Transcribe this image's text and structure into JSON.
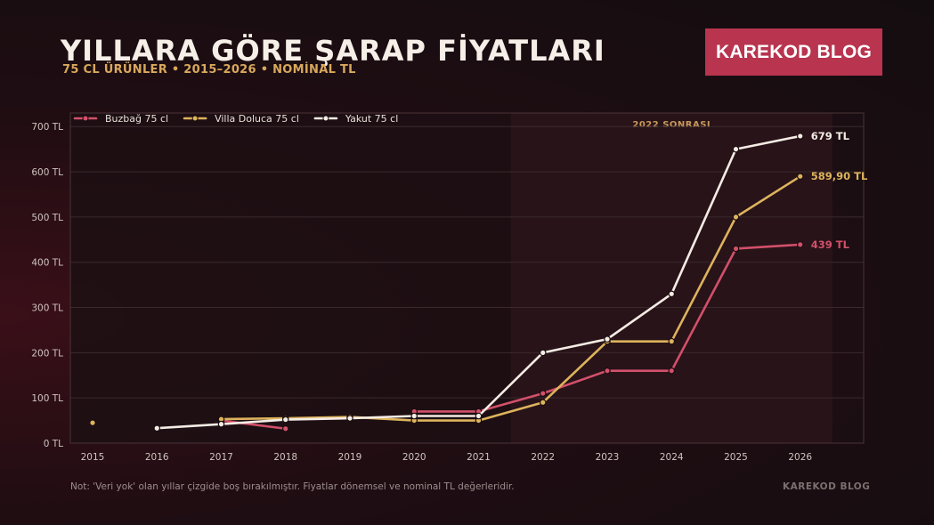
{
  "header": {
    "title": "YILLARA GÖRE ŞARAP FİYATLARI",
    "subtitle": "75 CL ÜRÜNLER • 2015–2026 • NOMİNAL TL",
    "brand": "KAREKOD BLOG"
  },
  "footer": {
    "note": "Not: 'Veri yok' olan yıllar çizgide boş bırakılmıştır. Fiyatlar dönemsel ve nominal TL değerleridir.",
    "brand": "KAREKOD BLOG"
  },
  "colors": {
    "buzbag": "#d2506a",
    "villa": "#ddb35c",
    "yakut": "#f4ece4",
    "band": "#2a141b"
  },
  "chart_data": {
    "type": "line",
    "x": [
      "2015",
      "2016",
      "2017",
      "2018",
      "2019",
      "2020",
      "2021",
      "2022",
      "2023",
      "2024",
      "2025",
      "2026"
    ],
    "ylim": [
      0,
      730
    ],
    "yticks": [
      0,
      100,
      200,
      300,
      400,
      500,
      600,
      700
    ],
    "ytick_labels": [
      "0 TL",
      "100 TL",
      "200 TL",
      "300 TL",
      "400 TL",
      "500 TL",
      "600 TL",
      "700 TL"
    ],
    "band": {
      "label": "2022 SONRASI",
      "from": "2022",
      "to": "2026"
    },
    "legend_position": "top-left",
    "grid": true,
    "series": [
      {
        "name": "Buzbağ 75 cl",
        "key": "buzbag",
        "values": [
          null,
          null,
          50,
          32,
          null,
          70,
          70,
          110,
          160,
          160,
          430,
          439
        ],
        "end_label": "439 TL"
      },
      {
        "name": "Villa Doluca 75 cl",
        "key": "villa",
        "values": [
          45,
          null,
          53,
          55,
          58,
          50,
          50,
          90,
          225,
          225,
          500,
          589.9
        ],
        "end_label": "589,90 TL"
      },
      {
        "name": "Yakut 75 cl",
        "key": "yakut",
        "values": [
          null,
          33,
          42,
          52,
          55,
          60,
          60,
          200,
          230,
          330,
          650,
          679
        ],
        "end_label": "679 TL"
      }
    ]
  }
}
